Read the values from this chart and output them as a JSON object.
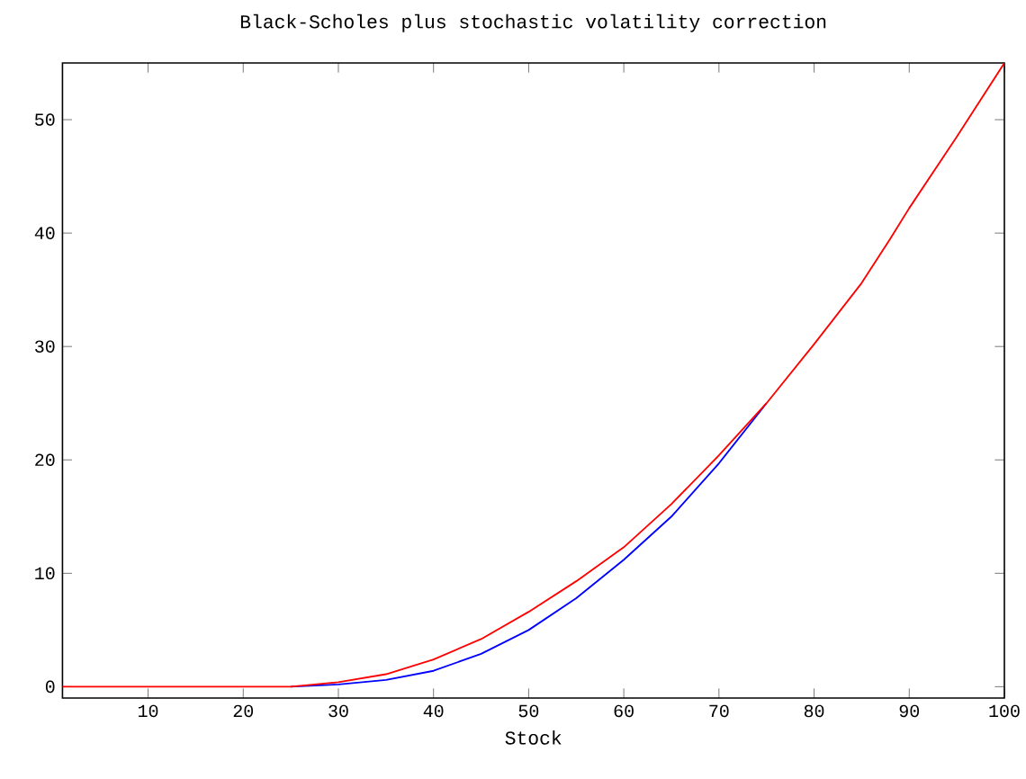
{
  "chart_data": {
    "type": "line",
    "title": "Black-Scholes plus stochastic volatility correction",
    "xlabel": "Stock",
    "xlim": [
      1,
      100
    ],
    "ylim": [
      -1,
      55
    ],
    "xticks": [
      10,
      20,
      30,
      40,
      50,
      60,
      70,
      80,
      90,
      100
    ],
    "yticks": [
      0,
      10,
      20,
      30,
      40,
      50
    ],
    "grid": false,
    "marker": "none",
    "line_style": "solid",
    "series": [
      {
        "color": "#0000ff",
        "x": [
          25,
          30,
          35,
          40,
          45,
          50,
          55,
          60,
          65,
          70,
          75
        ],
        "values": [
          0,
          0.2,
          0.6,
          1.4,
          2.9,
          5.0,
          7.8,
          11.2,
          15.0,
          19.7,
          25
        ]
      },
      {
        "color": "#ff0000",
        "x": [
          1,
          5,
          10,
          15,
          20,
          25,
          30,
          35,
          40,
          45,
          50,
          55,
          60,
          65,
          70,
          75,
          80,
          85,
          88,
          90,
          95,
          100
        ],
        "values": [
          0,
          0,
          0,
          0,
          0,
          0,
          0.4,
          1.1,
          2.4,
          4.2,
          6.6,
          9.3,
          12.3,
          16.1,
          20.4,
          25,
          30.2,
          35.6,
          39.5,
          42.2,
          48.5,
          55
        ]
      }
    ]
  }
}
